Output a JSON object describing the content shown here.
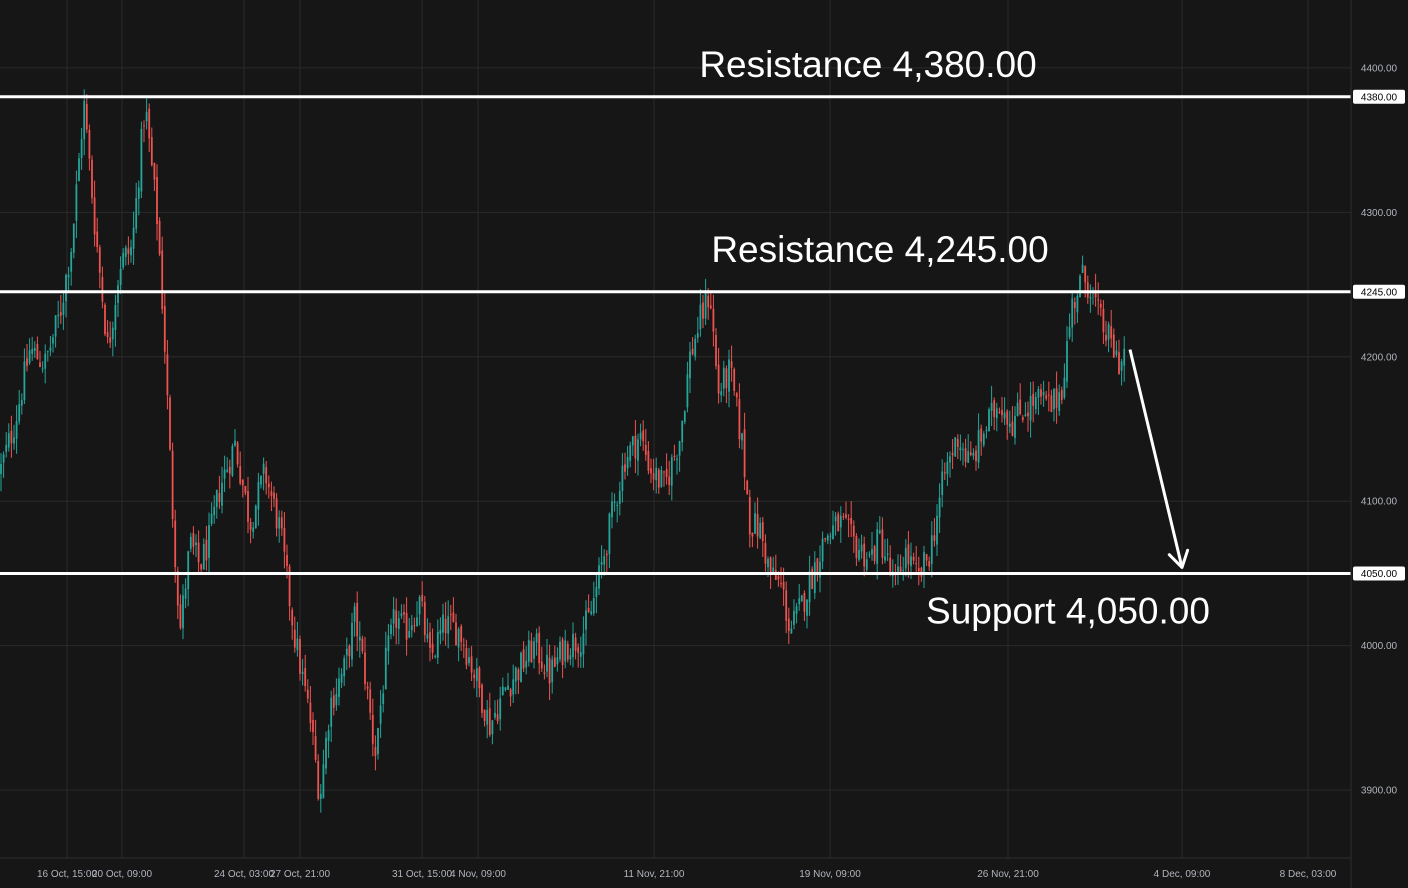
{
  "chart_data": {
    "type": "candlestick",
    "y_ticks": [
      3900,
      4000,
      4100,
      4200,
      4300,
      4400
    ],
    "y_tick_labels": [
      "3900.00",
      "4000.00",
      "4100.00",
      "4200.00",
      "4300.00",
      "4400.00"
    ],
    "ylim": [
      3853,
      4447
    ],
    "x_tick_labels": [
      "16 Oct, 15:00",
      "20 Oct, 09:00",
      "24 Oct, 03:00",
      "27 Oct, 21:00",
      "31 Oct, 15:00",
      "4 Nov, 09:00",
      "11 Nov, 21:00",
      "19 Nov, 09:00",
      "26 Nov, 21:00",
      "4 Dec, 09:00",
      "8 Dec, 03:00"
    ],
    "levels": [
      {
        "name": "resistance-4380",
        "value": 4380.0,
        "axis_label": "4380.00",
        "annotation": "Resistance 4,380.00"
      },
      {
        "name": "resistance-4245",
        "value": 4245.0,
        "axis_label": "4245.00",
        "annotation": "Resistance 4,245.00"
      },
      {
        "name": "support-4050",
        "value": 4050.0,
        "axis_label": "4050.00",
        "annotation": "Support 4,050.00"
      }
    ],
    "price_path": [
      [
        0,
        4120
      ],
      [
        15,
        4155
      ],
      [
        30,
        4205
      ],
      [
        45,
        4195
      ],
      [
        60,
        4230
      ],
      [
        72,
        4280
      ],
      [
        84,
        4375
      ],
      [
        95,
        4290
      ],
      [
        108,
        4205
      ],
      [
        120,
        4265
      ],
      [
        132,
        4275
      ],
      [
        145,
        4375
      ],
      [
        158,
        4290
      ],
      [
        165,
        4205
      ],
      [
        172,
        4100
      ],
      [
        180,
        4010
      ],
      [
        190,
        4070
      ],
      [
        200,
        4055
      ],
      [
        210,
        4075
      ],
      [
        220,
        4110
      ],
      [
        235,
        4140
      ],
      [
        250,
        4085
      ],
      [
        265,
        4120
      ],
      [
        280,
        4080
      ],
      [
        295,
        4005
      ],
      [
        310,
        3950
      ],
      [
        320,
        3895
      ],
      [
        330,
        3960
      ],
      [
        345,
        3985
      ],
      [
        355,
        4020
      ],
      [
        365,
        3980
      ],
      [
        375,
        3925
      ],
      [
        385,
        3985
      ],
      [
        395,
        4020
      ],
      [
        405,
        4010
      ],
      [
        420,
        4030
      ],
      [
        430,
        3990
      ],
      [
        445,
        4015
      ],
      [
        460,
        4010
      ],
      [
        475,
        3980
      ],
      [
        490,
        3945
      ],
      [
        505,
        3970
      ],
      [
        520,
        3985
      ],
      [
        535,
        4000
      ],
      [
        550,
        3980
      ],
      [
        565,
        4000
      ],
      [
        580,
        4005
      ],
      [
        590,
        4020
      ],
      [
        600,
        4050
      ],
      [
        612,
        4090
      ],
      [
        625,
        4130
      ],
      [
        640,
        4145
      ],
      [
        652,
        4120
      ],
      [
        665,
        4110
      ],
      [
        680,
        4145
      ],
      [
        690,
        4200
      ],
      [
        700,
        4225
      ],
      [
        710,
        4245
      ],
      [
        718,
        4175
      ],
      [
        730,
        4190
      ],
      [
        742,
        4140
      ],
      [
        750,
        4085
      ],
      [
        760,
        4080
      ],
      [
        770,
        4050
      ],
      [
        782,
        4040
      ],
      [
        790,
        4010
      ],
      [
        800,
        4025
      ],
      [
        810,
        4045
      ],
      [
        825,
        4075
      ],
      [
        840,
        4085
      ],
      [
        855,
        4070
      ],
      [
        870,
        4060
      ],
      [
        880,
        4075
      ],
      [
        895,
        4040
      ],
      [
        905,
        4065
      ],
      [
        918,
        4045
      ],
      [
        930,
        4065
      ],
      [
        945,
        4120
      ],
      [
        958,
        4145
      ],
      [
        970,
        4125
      ],
      [
        985,
        4150
      ],
      [
        1000,
        4170
      ],
      [
        1012,
        4155
      ],
      [
        1025,
        4165
      ],
      [
        1040,
        4170
      ],
      [
        1052,
        4165
      ],
      [
        1062,
        4180
      ],
      [
        1072,
        4235
      ],
      [
        1082,
        4255
      ],
      [
        1090,
        4250
      ],
      [
        1100,
        4225
      ],
      [
        1110,
        4210
      ],
      [
        1120,
        4195
      ],
      [
        1128,
        4210
      ]
    ],
    "projection": {
      "from": [
        1130,
        4205
      ],
      "to": [
        1182,
        4050
      ]
    },
    "colors": {
      "up": "#26a69a",
      "down": "#ef5350",
      "grid": "#2a2a2a",
      "level": "#ffffff",
      "background": "#161616"
    }
  }
}
